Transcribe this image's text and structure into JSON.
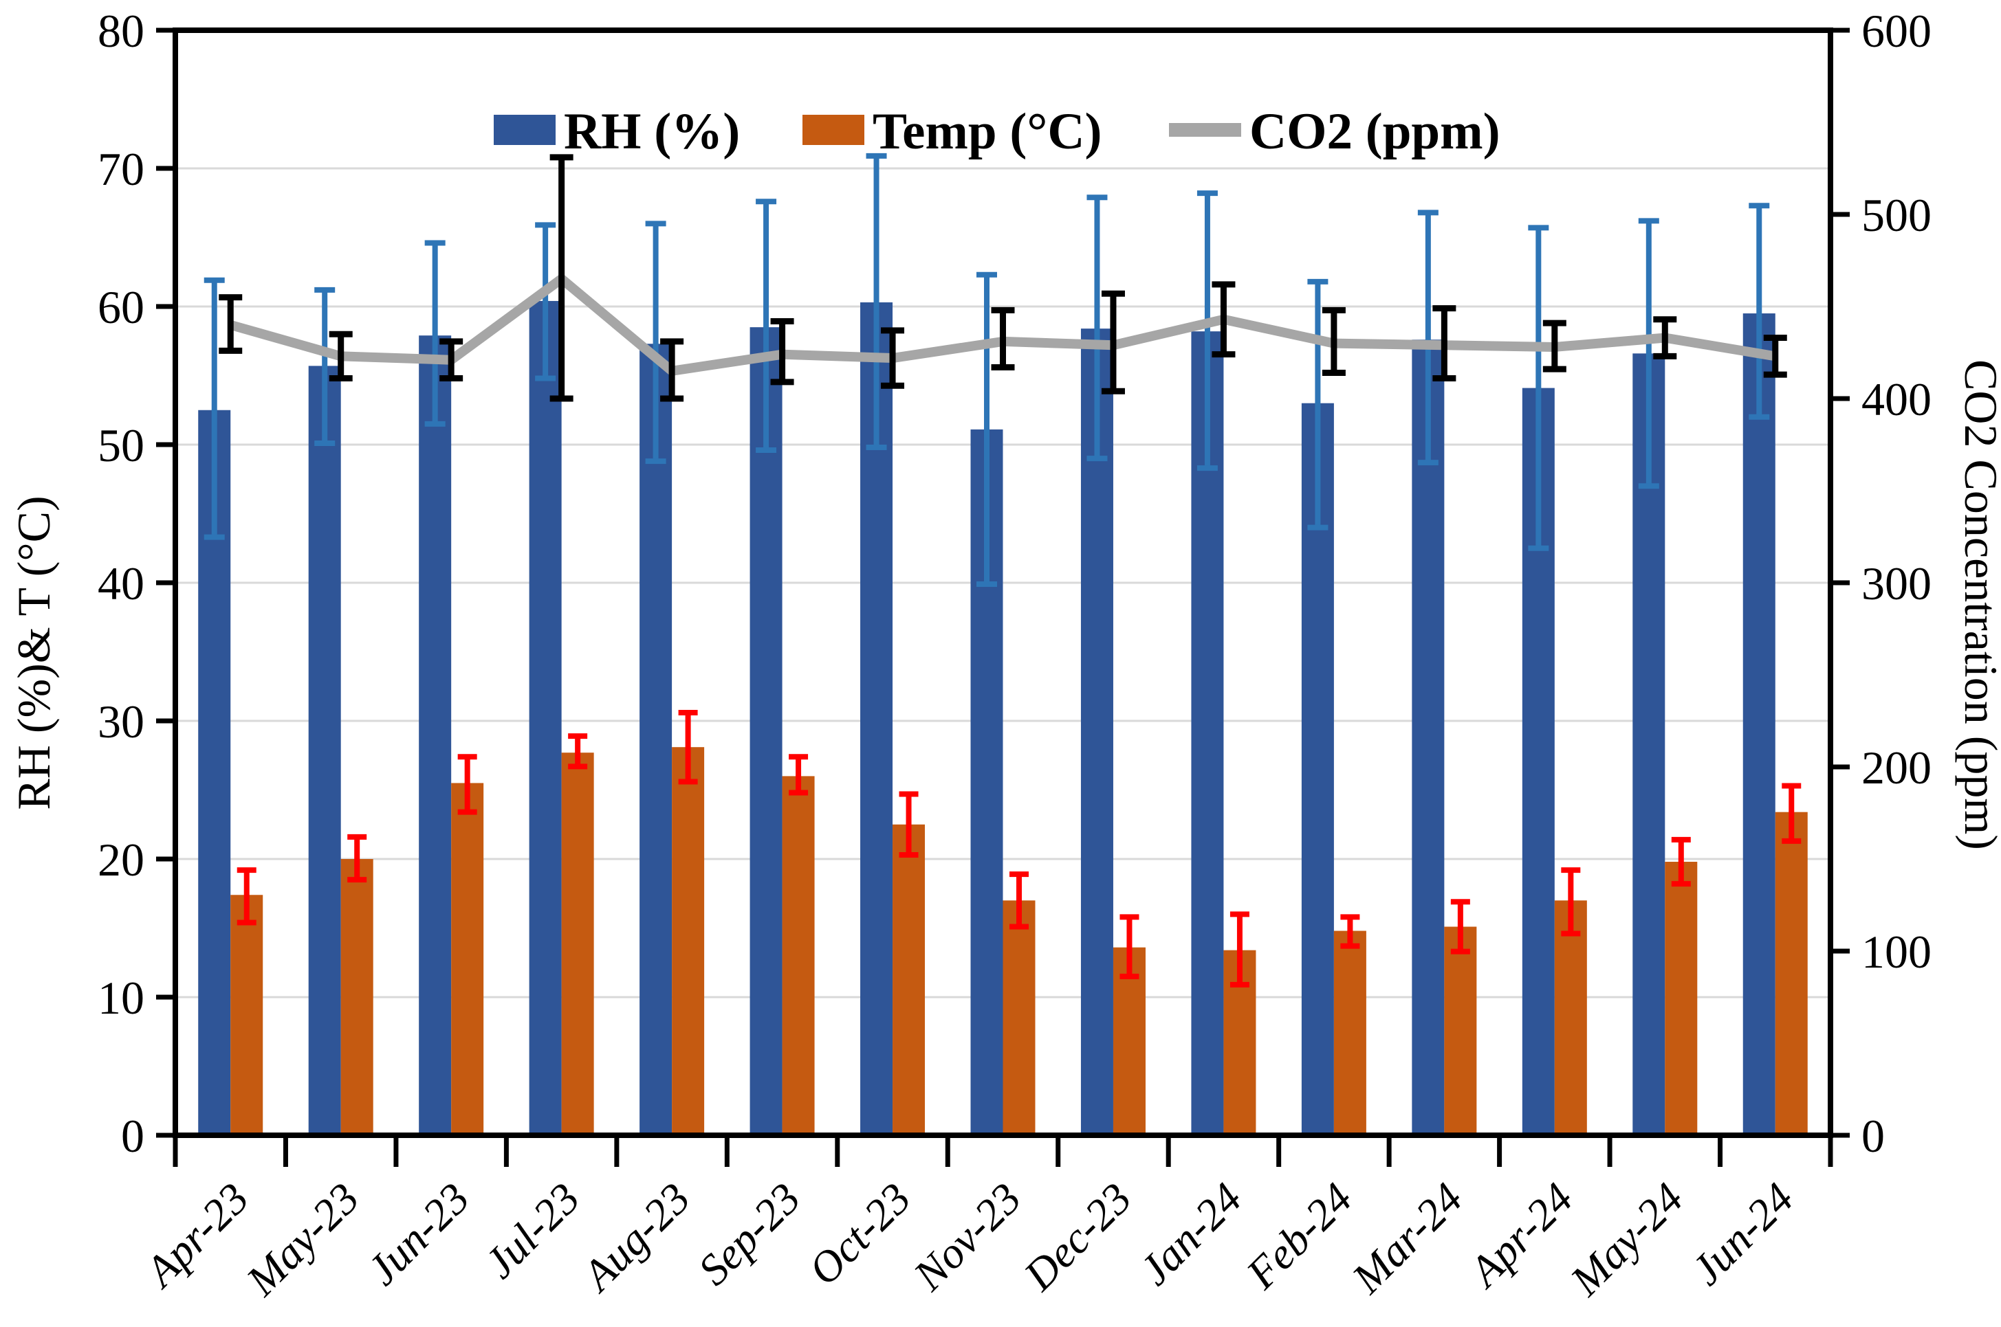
{
  "chart_data": {
    "type": "combo-bar-line",
    "categories": [
      "Apr-23",
      "May-23",
      "Jun-23",
      "Jul-23",
      "Aug-23",
      "Sep-23",
      "Oct-23",
      "Nov-23",
      "Dec-23",
      "Jan-24",
      "Feb-24",
      "Mar-24",
      "Apr-24",
      "May-24",
      "Jun-24"
    ],
    "series": [
      {
        "name": "RH (%)",
        "type": "bar",
        "axis": "left",
        "color": "#2F5597",
        "error_color": "#2E75B6",
        "values": [
          52.5,
          55.7,
          57.9,
          60.4,
          57.3,
          58.5,
          60.3,
          51.1,
          58.4,
          58.2,
          53.0,
          57.6,
          54.1,
          56.6,
          59.5
        ],
        "err_low": [
          43.3,
          50.1,
          51.5,
          54.8,
          48.8,
          49.6,
          49.8,
          39.9,
          49.0,
          48.3,
          44.0,
          48.7,
          42.5,
          47.0,
          52.0
        ],
        "err_high": [
          61.9,
          61.2,
          64.6,
          65.9,
          66.0,
          67.6,
          70.9,
          62.3,
          67.9,
          68.2,
          61.8,
          66.8,
          65.7,
          66.2,
          67.3
        ]
      },
      {
        "name": "Temp (°C)",
        "type": "bar",
        "axis": "left",
        "color": "#C55A11",
        "error_color": "#FF0000",
        "values": [
          17.4,
          20.0,
          25.5,
          27.7,
          28.1,
          26.0,
          22.5,
          17.0,
          13.6,
          13.4,
          14.8,
          15.1,
          17.0,
          19.8,
          23.4
        ],
        "err_low": [
          15.4,
          18.5,
          23.4,
          26.7,
          25.6,
          24.8,
          20.3,
          15.1,
          11.5,
          10.9,
          13.7,
          13.3,
          14.6,
          18.2,
          21.3
        ],
        "err_high": [
          19.2,
          21.6,
          27.4,
          28.9,
          30.6,
          27.4,
          24.7,
          18.9,
          15.8,
          16.0,
          15.8,
          16.9,
          19.2,
          21.4,
          25.3
        ]
      },
      {
        "name": "CO2 (ppm)",
        "type": "line",
        "axis": "right",
        "color": "#A6A6A6",
        "error_color": "#000000",
        "values": [
          440,
          423,
          421,
          465,
          415,
          424,
          422,
          431,
          429,
          443,
          430,
          429,
          428,
          433,
          423
        ],
        "err_low": [
          426,
          411,
          411,
          400,
          400,
          409,
          407,
          417,
          404,
          424,
          414,
          411,
          416,
          423,
          413
        ],
        "err_high": [
          455,
          435,
          431,
          531,
          431,
          442,
          437,
          448,
          457,
          462,
          448,
          449,
          441,
          443,
          433
        ]
      }
    ],
    "axes": {
      "left": {
        "title": "RH (%)& T (°C)",
        "min": 0,
        "max": 80,
        "step": 10
      },
      "right": {
        "title": "CO2  Concentration  (ppm)",
        "min": 0,
        "max": 600,
        "step": 100
      }
    },
    "legend_position": "top-center",
    "grid": "horizontal",
    "colors": {
      "gridline": "#D9D9D9",
      "axis": "#000000",
      "background": "#FFFFFF"
    }
  }
}
